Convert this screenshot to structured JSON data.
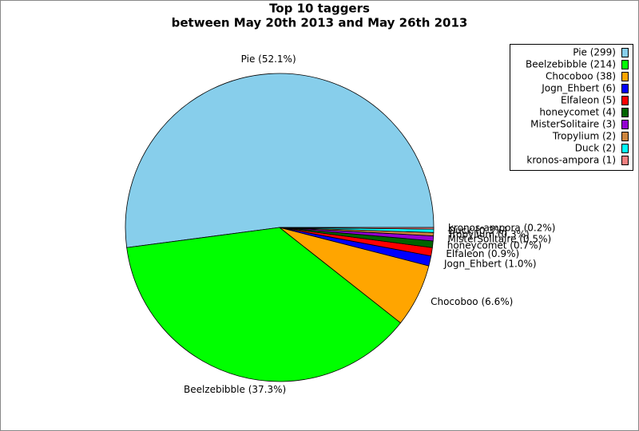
{
  "chart_data": {
    "type": "pie",
    "title": "Top 10 taggers",
    "subtitle": "between May 20th 2013 and May 26th 2013",
    "categories": [
      "Pie",
      "Beelzebibble",
      "Chocoboo",
      "Jogn_Ehbert",
      "Elfaleon",
      "honeycomet",
      "MisterSolitaire",
      "Tropylium",
      "Duck",
      "kronos-ampora"
    ],
    "values": [
      299,
      214,
      38,
      6,
      5,
      4,
      3,
      2,
      2,
      1
    ],
    "value_labels": [
      "Pie (52.1%)",
      "Beelzebibble (37.3%)",
      "Chocoboo (6.6%)",
      "Jogn_Ehbert (1.0%)",
      "Elfaleon (0.9%)",
      "honeycomet (0.7%)",
      "MisterSolitaire (0.5%)",
      "Tropylium (0.3%)",
      "Duck (0.3%)",
      "kronos-ampora (0.2%)"
    ],
    "legend_labels": [
      "Pie (299)",
      "Beelzebibble (214)",
      "Chocoboo (38)",
      "Jogn_Ehbert (6)",
      "Elfaleon (5)",
      "honeycomet (4)",
      "MisterSolitaire (3)",
      "Tropylium (2)",
      "Duck (2)",
      "kronos-ampora (1)"
    ],
    "colors": [
      "#87ceeb",
      "#00ff00",
      "#ffa500",
      "#0000ff",
      "#ff0000",
      "#006400",
      "#9400d3",
      "#cd853f",
      "#00ffff",
      "#f08080"
    ],
    "legend": "top-right"
  }
}
